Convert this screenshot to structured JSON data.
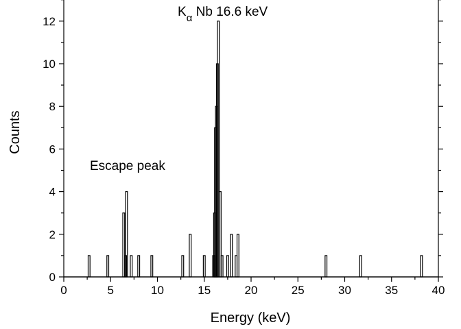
{
  "chart_data": {
    "type": "bar",
    "subtype": "histogram",
    "xlabel": "Energy (keV)",
    "ylabel": "Counts",
    "xlim": [
      0,
      40
    ],
    "ylim": [
      0,
      13
    ],
    "x_ticks": [
      0,
      5,
      10,
      15,
      20,
      25,
      30,
      35,
      40
    ],
    "y_ticks": [
      0,
      2,
      4,
      6,
      8,
      10,
      12
    ],
    "bin_width": 0.2,
    "bins": [
      {
        "x": 2.6,
        "count": 1
      },
      {
        "x": 4.6,
        "count": 1
      },
      {
        "x": 6.3,
        "count": 3
      },
      {
        "x": 6.5,
        "count": 1
      },
      {
        "x": 6.6,
        "count": 4
      },
      {
        "x": 7.1,
        "count": 1
      },
      {
        "x": 7.9,
        "count": 1
      },
      {
        "x": 9.3,
        "count": 1
      },
      {
        "x": 12.6,
        "count": 1
      },
      {
        "x": 13.4,
        "count": 2
      },
      {
        "x": 14.9,
        "count": 1
      },
      {
        "x": 15.9,
        "count": 1
      },
      {
        "x": 16.0,
        "count": 3
      },
      {
        "x": 16.1,
        "count": 7
      },
      {
        "x": 16.2,
        "count": 8
      },
      {
        "x": 16.3,
        "count": 10
      },
      {
        "x": 16.4,
        "count": 12
      },
      {
        "x": 16.6,
        "count": 4
      },
      {
        "x": 16.8,
        "count": 1
      },
      {
        "x": 17.4,
        "count": 1
      },
      {
        "x": 17.8,
        "count": 2
      },
      {
        "x": 18.3,
        "count": 1
      },
      {
        "x": 18.5,
        "count": 2
      },
      {
        "x": 27.9,
        "count": 1
      },
      {
        "x": 31.6,
        "count": 1
      },
      {
        "x": 38.1,
        "count": 1
      }
    ],
    "annotations": {
      "escape_peak": "Escape peak",
      "k_letter": "K",
      "k_subscript": "α",
      "k_text": " Nb 16.6 keV"
    },
    "grid": false,
    "legend": "none"
  }
}
